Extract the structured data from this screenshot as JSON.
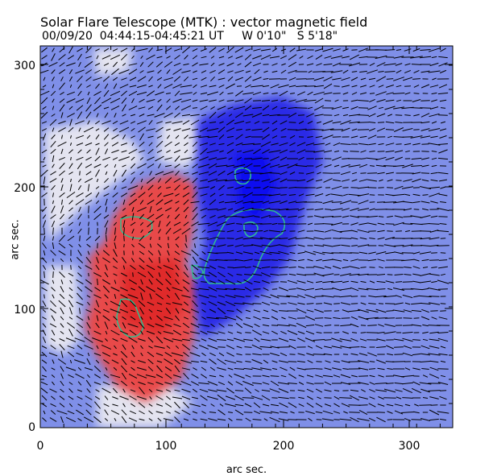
{
  "figure": {
    "title": "Solar Flare Telescope (MTK) : vector magnetic field",
    "subtitle": "00/09/20  04:44:15-04:45:21 UT     W 0'10\"   S 5'18\"",
    "xlabel": "arc sec.",
    "ylabel": "arc sec.",
    "x_ticks": [
      "0",
      "100",
      "200",
      "300"
    ],
    "y_ticks": [
      "0",
      "100",
      "200",
      "300"
    ]
  },
  "colors": {
    "positive": "#e84040",
    "negative": "#2020e8",
    "background": "#7f8fe8",
    "contour": "#30c090",
    "vector": "#000000"
  }
}
